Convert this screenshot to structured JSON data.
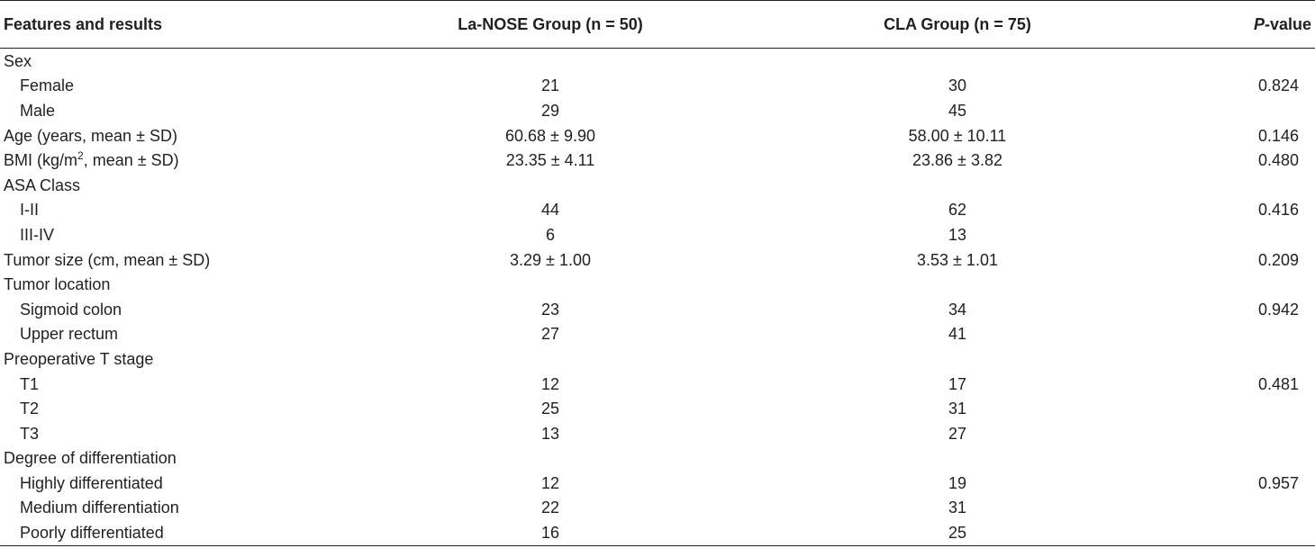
{
  "header": {
    "features": "Features and results",
    "group_a": "La-NOSE Group (n = 50)",
    "group_b": "CLA Group (n = 75)",
    "p_italic": "P",
    "p_rest": "-value"
  },
  "rows": [
    {
      "label": "Sex",
      "a": "",
      "b": "",
      "p": "",
      "indent": false
    },
    {
      "label": "Female",
      "a": "21",
      "b": "30",
      "p": "0.824",
      "indent": true
    },
    {
      "label": "Male",
      "a": "29",
      "b": "45",
      "p": "",
      "indent": true
    },
    {
      "label": "Age (years, mean ± SD)",
      "a": "60.68 ± 9.90",
      "b": "58.00 ± 10.11",
      "p": "0.146",
      "indent": false
    },
    {
      "label_pre": "BMI (kg/m",
      "label_sup": "2",
      "label_post": ", mean ± SD)",
      "a": "23.35 ± 4.11",
      "b": "23.86 ± 3.82",
      "p": "0.480",
      "indent": false
    },
    {
      "label": "ASA Class",
      "a": "",
      "b": "",
      "p": "",
      "indent": false
    },
    {
      "label": "I-II",
      "a": "44",
      "b": "62",
      "p": "0.416",
      "indent": true
    },
    {
      "label": "III-IV",
      "a": "6",
      "b": "13",
      "p": "",
      "indent": true
    },
    {
      "label": "Tumor size (cm, mean ± SD)",
      "a": "3.29 ± 1.00",
      "b": "3.53 ± 1.01",
      "p": "0.209",
      "indent": false
    },
    {
      "label": "Tumor location",
      "a": "",
      "b": "",
      "p": "",
      "indent": false
    },
    {
      "label": "Sigmoid colon",
      "a": "23",
      "b": "34",
      "p": "0.942",
      "indent": true
    },
    {
      "label": "Upper rectum",
      "a": "27",
      "b": "41",
      "p": "",
      "indent": true
    },
    {
      "label": "Preoperative T stage",
      "a": "",
      "b": "",
      "p": "",
      "indent": false
    },
    {
      "label": "T1",
      "a": "12",
      "b": "17",
      "p": "0.481",
      "indent": true
    },
    {
      "label": "T2",
      "a": "25",
      "b": "31",
      "p": "",
      "indent": true
    },
    {
      "label": "T3",
      "a": "13",
      "b": "27",
      "p": "",
      "indent": true
    },
    {
      "label": "Degree of differentiation",
      "a": "",
      "b": "",
      "p": "",
      "indent": false
    },
    {
      "label": "Highly differentiated",
      "a": "12",
      "b": "19",
      "p": "0.957",
      "indent": true
    },
    {
      "label": "Medium differentiation",
      "a": "22",
      "b": "31",
      "p": "",
      "indent": true
    },
    {
      "label": "Poorly differentiated",
      "a": "16",
      "b": "25",
      "p": "",
      "indent": true
    }
  ]
}
